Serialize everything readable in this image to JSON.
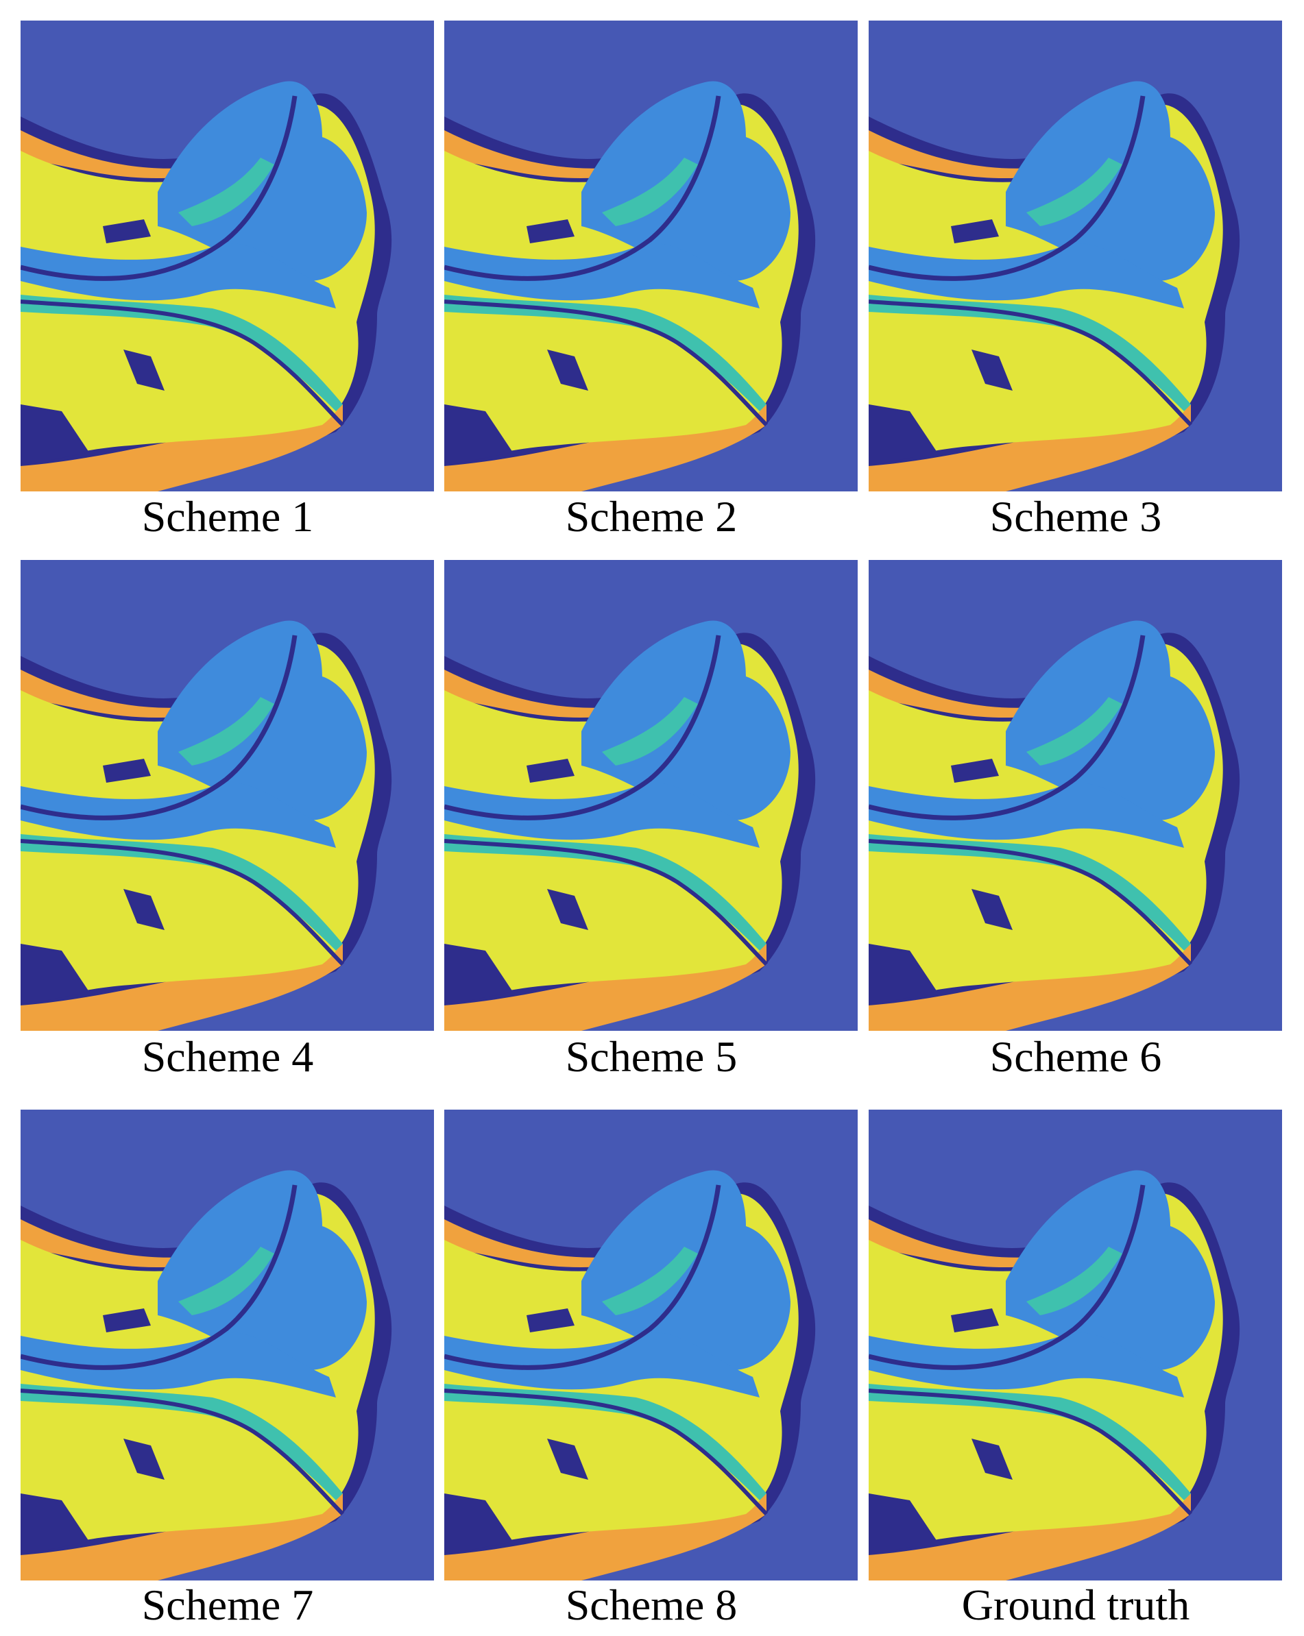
{
  "figure": {
    "panels": [
      {
        "label": "Scheme 1"
      },
      {
        "label": "Scheme 2"
      },
      {
        "label": "Scheme 3"
      },
      {
        "label": "Scheme 4"
      },
      {
        "label": "Scheme 5"
      },
      {
        "label": "Scheme 6"
      },
      {
        "label": "Scheme 7"
      },
      {
        "label": "Scheme 8"
      },
      {
        "label": "Ground truth"
      }
    ]
  },
  "colors": {
    "water": "#4658b4",
    "dark_class": "#2e2d8c",
    "light_blue_class": "#3f8bdc",
    "yellow_class": "#e2e53a",
    "orange_class": "#f0a23e",
    "teal_class": "#3fc1ae"
  }
}
